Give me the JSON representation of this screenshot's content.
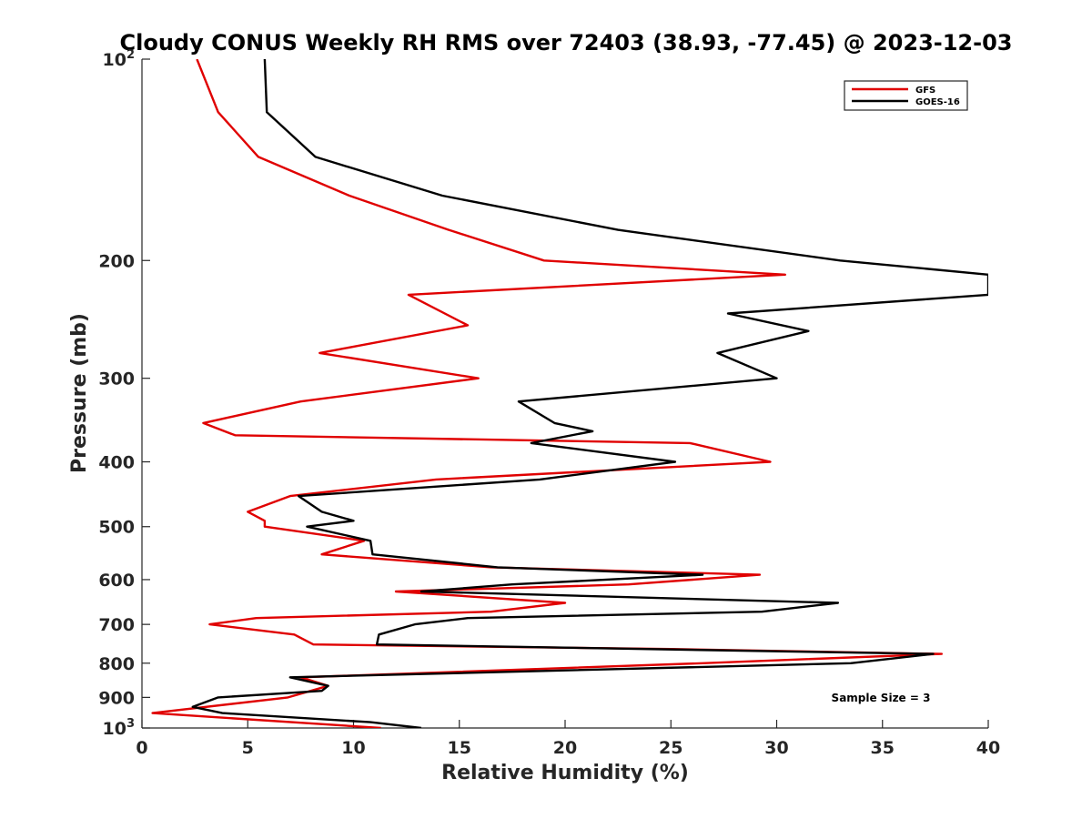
{
  "chart_data": {
    "type": "line",
    "title": "Cloudy CONUS Weekly RH RMS over 72403 (38.93, -77.45) @ 2023-12-03",
    "xlabel": "Relative Humidity (%)",
    "ylabel": "Pressure (mb)",
    "xlim": [
      0,
      40
    ],
    "ylim": [
      100,
      1000
    ],
    "yscale": "log",
    "y_reversed": true,
    "grid": false,
    "legend_position": "top-right",
    "x_ticks": [
      0,
      5,
      10,
      15,
      20,
      25,
      30,
      35,
      40
    ],
    "y_ticks": [
      {
        "value": 100,
        "base": "10",
        "exp": "2"
      },
      {
        "value": 200,
        "label": "200"
      },
      {
        "value": 300,
        "label": "300"
      },
      {
        "value": 400,
        "label": "400"
      },
      {
        "value": 500,
        "label": "500"
      },
      {
        "value": 600,
        "label": "600"
      },
      {
        "value": 700,
        "label": "700"
      },
      {
        "value": 800,
        "label": "800"
      },
      {
        "value": 900,
        "label": "900"
      },
      {
        "value": 1000,
        "base": "10",
        "exp": "3"
      }
    ],
    "annotation": "Sample Size = 3",
    "series": [
      {
        "name": "GFS",
        "color": "#e00000",
        "points": [
          [
            2.6,
            100
          ],
          [
            3.6,
            120
          ],
          [
            5.5,
            140
          ],
          [
            9.8,
            160
          ],
          [
            14.5,
            180
          ],
          [
            19.0,
            200
          ],
          [
            30.4,
            210
          ],
          [
            12.6,
            225
          ],
          [
            15.4,
            250
          ],
          [
            8.4,
            275
          ],
          [
            15.9,
            300
          ],
          [
            7.5,
            325
          ],
          [
            2.9,
            350
          ],
          [
            4.4,
            365
          ],
          [
            25.9,
            375
          ],
          [
            29.7,
            400
          ],
          [
            13.9,
            425
          ],
          [
            7.0,
            450
          ],
          [
            5.0,
            475
          ],
          [
            5.8,
            490
          ],
          [
            5.8,
            500
          ],
          [
            10.5,
            525
          ],
          [
            8.5,
            550
          ],
          [
            16.5,
            575
          ],
          [
            29.2,
            590
          ],
          [
            23.0,
            610
          ],
          [
            12.0,
            625
          ],
          [
            20.0,
            650
          ],
          [
            16.5,
            670
          ],
          [
            5.4,
            685
          ],
          [
            3.2,
            700
          ],
          [
            7.2,
            725
          ],
          [
            8.1,
            750
          ],
          [
            25.0,
            762
          ],
          [
            37.8,
            775
          ],
          [
            26.5,
            800
          ],
          [
            7.5,
            840
          ],
          [
            8.8,
            865
          ],
          [
            6.9,
            900
          ],
          [
            0.5,
            950
          ],
          [
            11.3,
            1000
          ]
        ]
      },
      {
        "name": "GOES-16",
        "color": "#000000",
        "points": [
          [
            5.8,
            100
          ],
          [
            5.9,
            120
          ],
          [
            8.2,
            140
          ],
          [
            14.2,
            160
          ],
          [
            22.5,
            180
          ],
          [
            33.0,
            200
          ],
          [
            40.0,
            210
          ],
          [
            40.0,
            225
          ],
          [
            27.7,
            240
          ],
          [
            31.5,
            255
          ],
          [
            27.2,
            275
          ],
          [
            30.0,
            300
          ],
          [
            17.8,
            325
          ],
          [
            19.5,
            350
          ],
          [
            21.3,
            360
          ],
          [
            18.4,
            375
          ],
          [
            25.2,
            400
          ],
          [
            18.8,
            425
          ],
          [
            7.4,
            450
          ],
          [
            8.5,
            475
          ],
          [
            10.0,
            490
          ],
          [
            7.8,
            500
          ],
          [
            10.8,
            525
          ],
          [
            10.9,
            550
          ],
          [
            16.8,
            575
          ],
          [
            26.5,
            590
          ],
          [
            17.5,
            610
          ],
          [
            13.2,
            625
          ],
          [
            32.9,
            650
          ],
          [
            29.3,
            670
          ],
          [
            15.4,
            685
          ],
          [
            12.9,
            700
          ],
          [
            11.2,
            725
          ],
          [
            11.1,
            750
          ],
          [
            37.4,
            775
          ],
          [
            33.5,
            800
          ],
          [
            7.0,
            840
          ],
          [
            8.8,
            865
          ],
          [
            8.5,
            880
          ],
          [
            3.6,
            900
          ],
          [
            2.4,
            930
          ],
          [
            3.8,
            950
          ],
          [
            10.8,
            980
          ],
          [
            13.2,
            1000
          ]
        ]
      }
    ]
  }
}
